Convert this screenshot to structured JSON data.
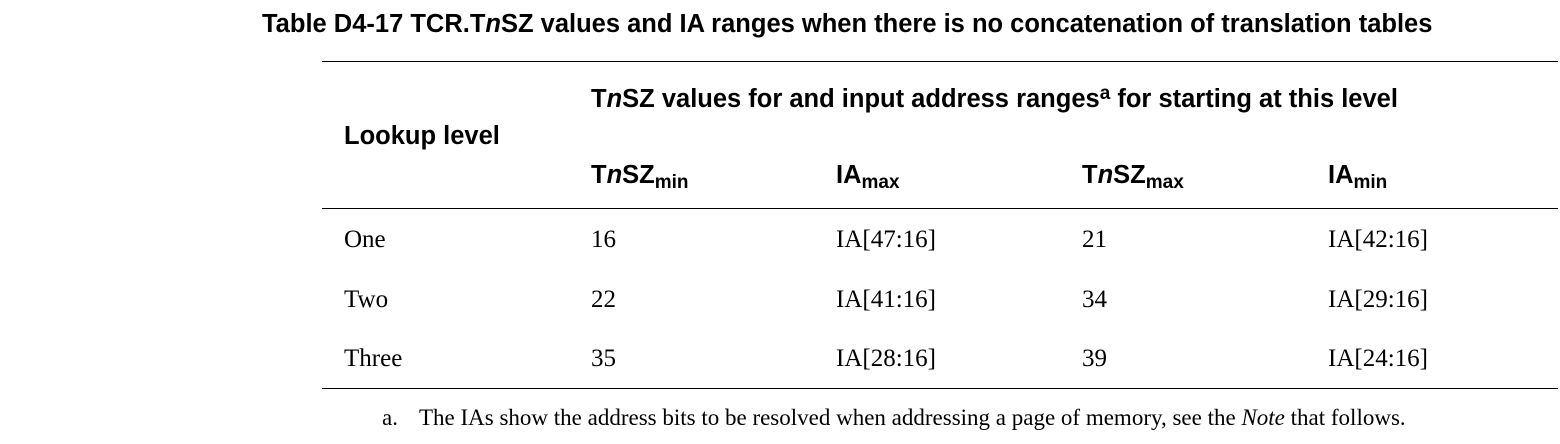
{
  "table": {
    "caption": {
      "prefix": "Table D4-17 TCR.T",
      "italic": "n",
      "suffix": "SZ values and IA ranges when there is no concatenation of translation tables"
    },
    "headers": {
      "lookup_level": "Lookup level",
      "group": {
        "prefix": "T",
        "italic": "n",
        "suffix": "SZ values for and input address ranges",
        "footnote_ref": "a",
        "tail": " for starting at this level"
      },
      "columns": [
        {
          "base_pre": "T",
          "italic": "n",
          "base_post": "SZ",
          "sub": "min"
        },
        {
          "base_pre": "IA",
          "italic": "",
          "base_post": "",
          "sub": "max"
        },
        {
          "base_pre": "T",
          "italic": "n",
          "base_post": "SZ",
          "sub": "max"
        },
        {
          "base_pre": "IA",
          "italic": "",
          "base_post": "",
          "sub": "min"
        }
      ]
    },
    "rows": [
      [
        "One",
        "16",
        "IA[47:16]",
        "21",
        "IA[42:16]"
      ],
      [
        "Two",
        "22",
        "IA[41:16]",
        "34",
        "IA[29:16]"
      ],
      [
        "Three",
        "35",
        "IA[28:16]",
        "39",
        "IA[24:16]"
      ]
    ],
    "footnote": {
      "mark": "a.",
      "text_before": "The IAs show the address bits to be resolved when addressing a page of memory, see the ",
      "italic": "Note",
      "text_after": " that follows."
    }
  }
}
